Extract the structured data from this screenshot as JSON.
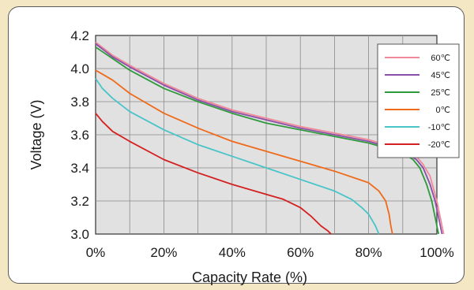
{
  "chart_data": {
    "type": "line",
    "title": "",
    "xlabel": "Capacity Rate (%)",
    "ylabel": "Voltage (V)",
    "xlim": [
      0,
      100
    ],
    "ylim": [
      3.0,
      4.2
    ],
    "x_ticks": [
      "0%",
      "20%",
      "40%",
      "60%",
      "80%",
      "100%"
    ],
    "y_ticks": [
      "3.0",
      "3.2",
      "3.4",
      "3.6",
      "3.8",
      "4.0",
      "4.2"
    ],
    "grid": true,
    "legend_position": "top-right",
    "series": [
      {
        "name": "60℃",
        "color": "#f08a9a",
        "x": [
          0,
          5,
          10,
          20,
          30,
          40,
          50,
          60,
          70,
          80,
          90,
          94,
          96,
          98,
          100,
          101,
          102
        ],
        "y": [
          4.16,
          4.08,
          4.02,
          3.91,
          3.82,
          3.75,
          3.7,
          3.65,
          3.61,
          3.57,
          3.51,
          3.47,
          3.42,
          3.35,
          3.2,
          3.1,
          3.0
        ]
      },
      {
        "name": "45℃",
        "color": "#8a4fa8",
        "x": [
          0,
          5,
          10,
          20,
          30,
          40,
          50,
          60,
          70,
          80,
          90,
          94,
          96,
          98,
          99.5,
          100.5,
          101.5
        ],
        "y": [
          4.15,
          4.07,
          4.01,
          3.9,
          3.81,
          3.74,
          3.69,
          3.64,
          3.6,
          3.56,
          3.5,
          3.45,
          3.4,
          3.3,
          3.2,
          3.1,
          3.0
        ]
      },
      {
        "name": "25℃",
        "color": "#2e9a3c",
        "x": [
          0,
          5,
          10,
          20,
          30,
          40,
          50,
          60,
          70,
          80,
          90,
          93,
          95,
          97,
          98.5,
          99.5,
          100.5
        ],
        "y": [
          4.13,
          4.06,
          3.99,
          3.88,
          3.8,
          3.73,
          3.67,
          3.63,
          3.59,
          3.55,
          3.49,
          3.45,
          3.4,
          3.3,
          3.2,
          3.1,
          3.0
        ]
      },
      {
        "name": "0℃",
        "color": "#ef6a1a",
        "x": [
          0,
          5,
          10,
          20,
          30,
          40,
          50,
          60,
          70,
          80,
          83,
          85,
          86,
          86.5,
          87
        ],
        "y": [
          3.99,
          3.93,
          3.85,
          3.73,
          3.64,
          3.56,
          3.5,
          3.44,
          3.38,
          3.31,
          3.26,
          3.2,
          3.12,
          3.05,
          3.0
        ]
      },
      {
        "name": "-10℃",
        "color": "#49c4c8",
        "x": [
          0,
          2,
          5,
          10,
          20,
          30,
          40,
          50,
          60,
          70,
          75,
          78,
          80,
          82,
          83
        ],
        "y": [
          3.94,
          3.88,
          3.82,
          3.74,
          3.63,
          3.54,
          3.47,
          3.4,
          3.33,
          3.26,
          3.21,
          3.16,
          3.12,
          3.05,
          3.0
        ]
      },
      {
        "name": "-20℃",
        "color": "#d42020",
        "x": [
          0,
          2,
          5,
          10,
          20,
          30,
          40,
          50,
          55,
          60,
          63,
          66,
          68,
          69
        ],
        "y": [
          3.73,
          3.68,
          3.62,
          3.56,
          3.45,
          3.37,
          3.3,
          3.24,
          3.21,
          3.16,
          3.11,
          3.05,
          3.02,
          3.0
        ]
      }
    ]
  }
}
